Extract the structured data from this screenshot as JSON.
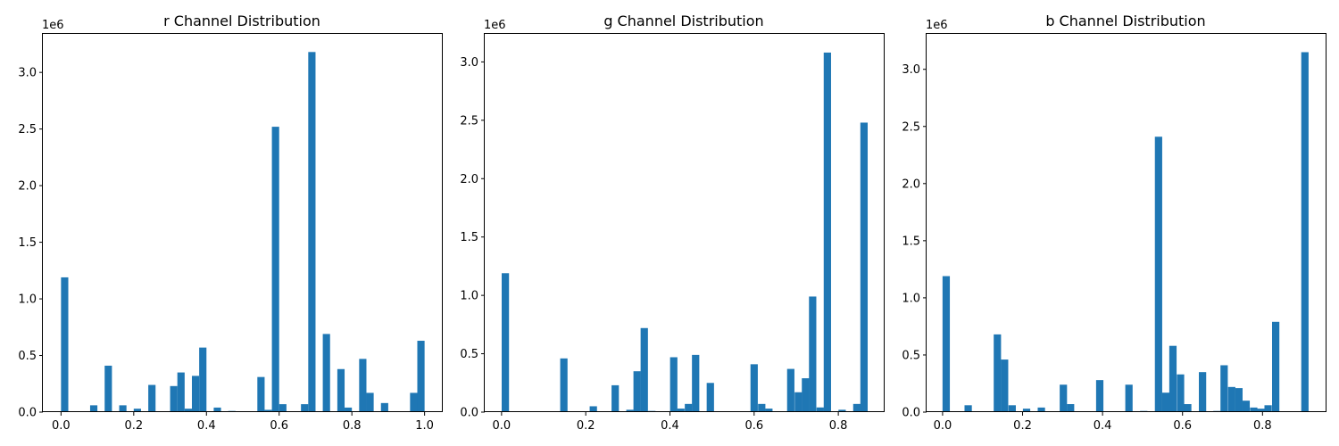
{
  "chart_data": [
    {
      "type": "bar",
      "title": "r Channel Distribution",
      "xlabel": "",
      "ylabel": "",
      "y_offset_label": "1e6",
      "xlim": [
        -0.05,
        1.05
      ],
      "ylim": [
        0,
        3.34
      ],
      "xticks": [
        0.0,
        0.2,
        0.4,
        0.6,
        0.8,
        1.0
      ],
      "xtick_labels": [
        "0.0",
        "0.2",
        "0.4",
        "0.6",
        "0.8",
        "1.0"
      ],
      "yticks": [
        0.0,
        0.5,
        1.0,
        1.5,
        2.0,
        2.5,
        3.0
      ],
      "ytick_labels": [
        "0.0",
        "0.5",
        "1.0",
        "1.5",
        "2.0",
        "2.5",
        "3.0"
      ],
      "bin_width": 0.02,
      "bins": [
        {
          "x": 0.01,
          "value": 1.19
        },
        {
          "x": 0.09,
          "value": 0.06
        },
        {
          "x": 0.13,
          "value": 0.41
        },
        {
          "x": 0.17,
          "value": 0.06
        },
        {
          "x": 0.21,
          "value": 0.03
        },
        {
          "x": 0.25,
          "value": 0.24
        },
        {
          "x": 0.31,
          "value": 0.23
        },
        {
          "x": 0.33,
          "value": 0.35
        },
        {
          "x": 0.35,
          "value": 0.03
        },
        {
          "x": 0.37,
          "value": 0.32
        },
        {
          "x": 0.39,
          "value": 0.57
        },
        {
          "x": 0.43,
          "value": 0.04
        },
        {
          "x": 0.47,
          "value": 0.01
        },
        {
          "x": 0.55,
          "value": 0.31
        },
        {
          "x": 0.57,
          "value": 0.02
        },
        {
          "x": 0.59,
          "value": 2.52
        },
        {
          "x": 0.61,
          "value": 0.07
        },
        {
          "x": 0.67,
          "value": 0.07
        },
        {
          "x": 0.69,
          "value": 3.18
        },
        {
          "x": 0.73,
          "value": 0.69
        },
        {
          "x": 0.77,
          "value": 0.38
        },
        {
          "x": 0.79,
          "value": 0.04
        },
        {
          "x": 0.83,
          "value": 0.47
        },
        {
          "x": 0.85,
          "value": 0.17
        },
        {
          "x": 0.89,
          "value": 0.08
        },
        {
          "x": 0.97,
          "value": 0.17
        },
        {
          "x": 0.99,
          "value": 0.63
        }
      ]
    },
    {
      "type": "bar",
      "title": "g Channel Distribution",
      "xlabel": "",
      "ylabel": "",
      "y_offset_label": "1e6",
      "xlim": [
        -0.04,
        0.91
      ],
      "ylim": [
        0,
        3.24
      ],
      "xticks": [
        0.0,
        0.2,
        0.4,
        0.6,
        0.8
      ],
      "xtick_labels": [
        "0.0",
        "0.2",
        "0.4",
        "0.6",
        "0.8"
      ],
      "yticks": [
        0.0,
        0.5,
        1.0,
        1.5,
        2.0,
        2.5,
        3.0
      ],
      "ytick_labels": [
        "0.0",
        "0.5",
        "1.0",
        "1.5",
        "2.0",
        "2.5",
        "3.0"
      ],
      "bin_width": 0.0174,
      "bins": [
        {
          "x": 0.009,
          "value": 1.19
        },
        {
          "x": 0.148,
          "value": 0.46
        },
        {
          "x": 0.218,
          "value": 0.05
        },
        {
          "x": 0.27,
          "value": 0.23
        },
        {
          "x": 0.305,
          "value": 0.02
        },
        {
          "x": 0.322,
          "value": 0.35
        },
        {
          "x": 0.339,
          "value": 0.72
        },
        {
          "x": 0.357,
          "value": 0.01
        },
        {
          "x": 0.409,
          "value": 0.47
        },
        {
          "x": 0.426,
          "value": 0.03
        },
        {
          "x": 0.444,
          "value": 0.07
        },
        {
          "x": 0.461,
          "value": 0.49
        },
        {
          "x": 0.496,
          "value": 0.25
        },
        {
          "x": 0.6,
          "value": 0.41
        },
        {
          "x": 0.618,
          "value": 0.07
        },
        {
          "x": 0.635,
          "value": 0.03
        },
        {
          "x": 0.687,
          "value": 0.37
        },
        {
          "x": 0.705,
          "value": 0.17
        },
        {
          "x": 0.722,
          "value": 0.29
        },
        {
          "x": 0.739,
          "value": 0.99
        },
        {
          "x": 0.757,
          "value": 0.04
        },
        {
          "x": 0.774,
          "value": 3.08
        },
        {
          "x": 0.809,
          "value": 0.02
        },
        {
          "x": 0.844,
          "value": 0.07
        },
        {
          "x": 0.861,
          "value": 2.48
        }
      ]
    },
    {
      "type": "bar",
      "title": "b Channel Distribution",
      "xlabel": "",
      "ylabel": "",
      "y_offset_label": "1e6",
      "xlim": [
        -0.04,
        0.96
      ],
      "ylim": [
        0,
        3.31
      ],
      "xticks": [
        0.0,
        0.2,
        0.4,
        0.6,
        0.8
      ],
      "xtick_labels": [
        "0.0",
        "0.2",
        "0.4",
        "0.6",
        "0.8"
      ],
      "yticks": [
        0.0,
        0.5,
        1.0,
        1.5,
        2.0,
        2.5,
        3.0
      ],
      "ytick_labels": [
        "0.0",
        "0.5",
        "1.0",
        "1.5",
        "2.0",
        "2.5",
        "3.0"
      ],
      "bin_width": 0.0183,
      "bins": [
        {
          "x": 0.009,
          "value": 1.19
        },
        {
          "x": 0.064,
          "value": 0.06
        },
        {
          "x": 0.137,
          "value": 0.68
        },
        {
          "x": 0.155,
          "value": 0.46
        },
        {
          "x": 0.174,
          "value": 0.06
        },
        {
          "x": 0.21,
          "value": 0.03
        },
        {
          "x": 0.247,
          "value": 0.04
        },
        {
          "x": 0.302,
          "value": 0.24
        },
        {
          "x": 0.32,
          "value": 0.07
        },
        {
          "x": 0.393,
          "value": 0.28
        },
        {
          "x": 0.466,
          "value": 0.24
        },
        {
          "x": 0.503,
          "value": 0.01
        },
        {
          "x": 0.54,
          "value": 2.41
        },
        {
          "x": 0.558,
          "value": 0.17
        },
        {
          "x": 0.576,
          "value": 0.58
        },
        {
          "x": 0.595,
          "value": 0.33
        },
        {
          "x": 0.613,
          "value": 0.07
        },
        {
          "x": 0.65,
          "value": 0.35
        },
        {
          "x": 0.686,
          "value": 0.01
        },
        {
          "x": 0.704,
          "value": 0.41
        },
        {
          "x": 0.723,
          "value": 0.22
        },
        {
          "x": 0.741,
          "value": 0.21
        },
        {
          "x": 0.759,
          "value": 0.1
        },
        {
          "x": 0.778,
          "value": 0.04
        },
        {
          "x": 0.796,
          "value": 0.03
        },
        {
          "x": 0.814,
          "value": 0.06
        },
        {
          "x": 0.833,
          "value": 0.79
        },
        {
          "x": 0.906,
          "value": 3.15
        }
      ]
    }
  ],
  "colors": {
    "bar": "#1f77b4",
    "axis": "#000000",
    "background": "#ffffff"
  }
}
